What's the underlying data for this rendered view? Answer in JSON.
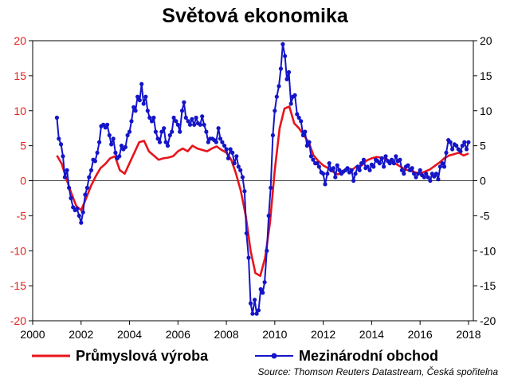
{
  "chart_data": {
    "type": "line",
    "title": "Světová ekonomika",
    "source": "Source: Thomson Reuters Datastream, Česká spořitelna",
    "xlim": [
      2000,
      2018.2
    ],
    "ylim": [
      -20,
      20
    ],
    "x_ticks": [
      2000,
      2002,
      2004,
      2006,
      2008,
      2010,
      2012,
      2014,
      2016,
      2018
    ],
    "y_ticks": [
      -20,
      -15,
      -10,
      -5,
      0,
      5,
      10,
      15,
      20
    ],
    "grid": false,
    "legend_position": "bottom",
    "colors": {
      "left_axis": "#e0201b",
      "right_axis": "#000000"
    },
    "series": [
      {
        "name": "Průmyslová výroba",
        "color": "#e8141b",
        "marker": false,
        "axis": "left",
        "points": [
          [
            2001.0,
            3.6
          ],
          [
            2001.2,
            2.4
          ],
          [
            2001.4,
            0.2
          ],
          [
            2001.6,
            -1.8
          ],
          [
            2001.8,
            -3.6
          ],
          [
            2002.0,
            -4.2
          ],
          [
            2002.2,
            -2.6
          ],
          [
            2002.4,
            -0.8
          ],
          [
            2002.6,
            0.6
          ],
          [
            2002.8,
            1.8
          ],
          [
            2003.0,
            2.4
          ],
          [
            2003.2,
            3.2
          ],
          [
            2003.4,
            3.5
          ],
          [
            2003.6,
            1.5
          ],
          [
            2003.8,
            1.0
          ],
          [
            2004.0,
            2.5
          ],
          [
            2004.2,
            4.0
          ],
          [
            2004.4,
            5.5
          ],
          [
            2004.6,
            5.7
          ],
          [
            2004.8,
            4.2
          ],
          [
            2005.0,
            3.6
          ],
          [
            2005.2,
            3.0
          ],
          [
            2005.4,
            3.2
          ],
          [
            2005.6,
            3.3
          ],
          [
            2005.8,
            3.5
          ],
          [
            2006.0,
            4.2
          ],
          [
            2006.2,
            4.6
          ],
          [
            2006.4,
            4.2
          ],
          [
            2006.6,
            5.0
          ],
          [
            2006.8,
            4.6
          ],
          [
            2007.0,
            4.4
          ],
          [
            2007.2,
            4.2
          ],
          [
            2007.4,
            4.6
          ],
          [
            2007.6,
            4.9
          ],
          [
            2007.8,
            4.4
          ],
          [
            2008.0,
            4.0
          ],
          [
            2008.2,
            3.0
          ],
          [
            2008.4,
            1.0
          ],
          [
            2008.6,
            -1.5
          ],
          [
            2008.8,
            -5.0
          ],
          [
            2009.0,
            -10.0
          ],
          [
            2009.2,
            -13.2
          ],
          [
            2009.4,
            -13.6
          ],
          [
            2009.6,
            -11.0
          ],
          [
            2009.8,
            -6.0
          ],
          [
            2010.0,
            1.5
          ],
          [
            2010.2,
            7.5
          ],
          [
            2010.4,
            10.3
          ],
          [
            2010.6,
            10.6
          ],
          [
            2010.8,
            8.2
          ],
          [
            2011.0,
            7.5
          ],
          [
            2011.2,
            6.5
          ],
          [
            2011.4,
            5.5
          ],
          [
            2011.6,
            3.6
          ],
          [
            2011.8,
            2.8
          ],
          [
            2012.0,
            2.2
          ],
          [
            2012.2,
            1.8
          ],
          [
            2012.4,
            1.3
          ],
          [
            2012.6,
            0.9
          ],
          [
            2012.8,
            1.3
          ],
          [
            2013.0,
            1.8
          ],
          [
            2013.2,
            1.6
          ],
          [
            2013.4,
            2.1
          ],
          [
            2013.6,
            2.2
          ],
          [
            2013.8,
            2.9
          ],
          [
            2014.0,
            3.2
          ],
          [
            2014.2,
            3.4
          ],
          [
            2014.4,
            3.3
          ],
          [
            2014.6,
            3.1
          ],
          [
            2014.8,
            2.7
          ],
          [
            2015.0,
            2.4
          ],
          [
            2015.2,
            2.0
          ],
          [
            2015.4,
            1.6
          ],
          [
            2015.6,
            1.4
          ],
          [
            2015.8,
            1.2
          ],
          [
            2016.0,
            1.0
          ],
          [
            2016.2,
            1.3
          ],
          [
            2016.4,
            1.6
          ],
          [
            2016.6,
            2.1
          ],
          [
            2016.8,
            2.6
          ],
          [
            2017.0,
            3.2
          ],
          [
            2017.2,
            3.6
          ],
          [
            2017.4,
            3.8
          ],
          [
            2017.6,
            4.0
          ],
          [
            2017.8,
            3.6
          ],
          [
            2018.0,
            3.9
          ]
        ]
      },
      {
        "name": "Mezinárodní obchod",
        "color": "#1414c8",
        "marker": true,
        "axis": "right",
        "points": [
          [
            2001.0,
            9.0
          ],
          [
            2001.08,
            6.0
          ],
          [
            2001.17,
            5.2
          ],
          [
            2001.25,
            3.5
          ],
          [
            2001.33,
            0.5
          ],
          [
            2001.42,
            1.5
          ],
          [
            2001.5,
            -1.0
          ],
          [
            2001.58,
            -2.5
          ],
          [
            2001.67,
            -3.8
          ],
          [
            2001.75,
            -4.2
          ],
          [
            2001.83,
            -4.0
          ],
          [
            2001.92,
            -5.0
          ],
          [
            2002.0,
            -6.0
          ],
          [
            2002.08,
            -4.5
          ],
          [
            2002.17,
            -2.0
          ],
          [
            2002.25,
            -1.0
          ],
          [
            2002.33,
            0.5
          ],
          [
            2002.42,
            1.5
          ],
          [
            2002.5,
            3.0
          ],
          [
            2002.58,
            2.8
          ],
          [
            2002.67,
            4.0
          ],
          [
            2002.75,
            5.5
          ],
          [
            2002.83,
            7.8
          ],
          [
            2002.92,
            8.0
          ],
          [
            2003.0,
            7.6
          ],
          [
            2003.08,
            8.0
          ],
          [
            2003.17,
            6.5
          ],
          [
            2003.25,
            5.2
          ],
          [
            2003.33,
            6.0
          ],
          [
            2003.42,
            4.0
          ],
          [
            2003.5,
            3.2
          ],
          [
            2003.58,
            3.5
          ],
          [
            2003.67,
            5.0
          ],
          [
            2003.75,
            4.5
          ],
          [
            2003.83,
            4.8
          ],
          [
            2003.92,
            6.5
          ],
          [
            2004.0,
            7.0
          ],
          [
            2004.08,
            8.5
          ],
          [
            2004.17,
            10.5
          ],
          [
            2004.25,
            10.0
          ],
          [
            2004.33,
            12.0
          ],
          [
            2004.42,
            11.5
          ],
          [
            2004.5,
            13.8
          ],
          [
            2004.58,
            11.0
          ],
          [
            2004.67,
            12.0
          ],
          [
            2004.75,
            10.0
          ],
          [
            2004.83,
            9.0
          ],
          [
            2004.92,
            8.5
          ],
          [
            2005.0,
            9.0
          ],
          [
            2005.08,
            7.0
          ],
          [
            2005.17,
            6.0
          ],
          [
            2005.25,
            5.5
          ],
          [
            2005.33,
            7.0
          ],
          [
            2005.42,
            7.5
          ],
          [
            2005.5,
            5.5
          ],
          [
            2005.58,
            5.0
          ],
          [
            2005.67,
            6.5
          ],
          [
            2005.75,
            7.0
          ],
          [
            2005.83,
            9.0
          ],
          [
            2005.92,
            8.5
          ],
          [
            2006.0,
            8.0
          ],
          [
            2006.08,
            7.0
          ],
          [
            2006.17,
            10.0
          ],
          [
            2006.25,
            11.2
          ],
          [
            2006.33,
            9.0
          ],
          [
            2006.42,
            8.5
          ],
          [
            2006.5,
            8.0
          ],
          [
            2006.58,
            8.8
          ],
          [
            2006.67,
            8.0
          ],
          [
            2006.75,
            9.0
          ],
          [
            2006.83,
            8.2
          ],
          [
            2006.92,
            8.0
          ],
          [
            2007.0,
            9.2
          ],
          [
            2007.08,
            8.0
          ],
          [
            2007.17,
            7.0
          ],
          [
            2007.25,
            5.5
          ],
          [
            2007.33,
            6.0
          ],
          [
            2007.42,
            6.0
          ],
          [
            2007.5,
            5.8
          ],
          [
            2007.58,
            5.5
          ],
          [
            2007.67,
            7.5
          ],
          [
            2007.75,
            6.0
          ],
          [
            2007.83,
            5.5
          ],
          [
            2007.92,
            5.0
          ],
          [
            2008.0,
            4.5
          ],
          [
            2008.08,
            3.2
          ],
          [
            2008.17,
            4.5
          ],
          [
            2008.25,
            4.0
          ],
          [
            2008.33,
            2.5
          ],
          [
            2008.42,
            3.5
          ],
          [
            2008.5,
            2.0
          ],
          [
            2008.58,
            1.5
          ],
          [
            2008.67,
            0.5
          ],
          [
            2008.75,
            -1.5
          ],
          [
            2008.83,
            -7.5
          ],
          [
            2008.92,
            -11.0
          ],
          [
            2009.0,
            -17.5
          ],
          [
            2009.08,
            -19.0
          ],
          [
            2009.17,
            -17.0
          ],
          [
            2009.25,
            -19.0
          ],
          [
            2009.33,
            -18.5
          ],
          [
            2009.42,
            -15.5
          ],
          [
            2009.5,
            -16.0
          ],
          [
            2009.58,
            -14.5
          ],
          [
            2009.67,
            -10.0
          ],
          [
            2009.75,
            -5.0
          ],
          [
            2009.83,
            -1.0
          ],
          [
            2009.92,
            6.5
          ],
          [
            2010.0,
            10.0
          ],
          [
            2010.08,
            12.0
          ],
          [
            2010.17,
            13.5
          ],
          [
            2010.25,
            16.0
          ],
          [
            2010.33,
            19.5
          ],
          [
            2010.42,
            17.8
          ],
          [
            2010.5,
            14.5
          ],
          [
            2010.58,
            15.5
          ],
          [
            2010.67,
            11.0
          ],
          [
            2010.75,
            12.0
          ],
          [
            2010.83,
            12.2
          ],
          [
            2010.92,
            9.5
          ],
          [
            2011.0,
            9.0
          ],
          [
            2011.08,
            8.5
          ],
          [
            2011.17,
            6.5
          ],
          [
            2011.25,
            7.0
          ],
          [
            2011.33,
            5.0
          ],
          [
            2011.42,
            5.5
          ],
          [
            2011.5,
            3.5
          ],
          [
            2011.58,
            3.0
          ],
          [
            2011.67,
            2.5
          ],
          [
            2011.75,
            2.5
          ],
          [
            2011.83,
            2.0
          ],
          [
            2011.92,
            1.2
          ],
          [
            2012.0,
            1.0
          ],
          [
            2012.08,
            -0.5
          ],
          [
            2012.17,
            1.0
          ],
          [
            2012.25,
            2.5
          ],
          [
            2012.33,
            1.5
          ],
          [
            2012.42,
            1.8
          ],
          [
            2012.5,
            0.5
          ],
          [
            2012.58,
            2.2
          ],
          [
            2012.67,
            1.5
          ],
          [
            2012.75,
            1.0
          ],
          [
            2012.83,
            1.3
          ],
          [
            2012.92,
            1.5
          ],
          [
            2013.0,
            1.8
          ],
          [
            2013.08,
            1.2
          ],
          [
            2013.17,
            1.5
          ],
          [
            2013.25,
            0.0
          ],
          [
            2013.33,
            1.0
          ],
          [
            2013.42,
            2.0
          ],
          [
            2013.5,
            1.5
          ],
          [
            2013.58,
            2.5
          ],
          [
            2013.67,
            3.0
          ],
          [
            2013.75,
            1.8
          ],
          [
            2013.83,
            2.0
          ],
          [
            2013.92,
            1.5
          ],
          [
            2014.0,
            2.3
          ],
          [
            2014.08,
            2.0
          ],
          [
            2014.17,
            3.0
          ],
          [
            2014.25,
            2.8
          ],
          [
            2014.33,
            2.5
          ],
          [
            2014.42,
            3.2
          ],
          [
            2014.5,
            2.0
          ],
          [
            2014.58,
            3.5
          ],
          [
            2014.67,
            2.8
          ],
          [
            2014.75,
            2.5
          ],
          [
            2014.83,
            3.0
          ],
          [
            2014.92,
            2.5
          ],
          [
            2015.0,
            3.5
          ],
          [
            2015.08,
            2.8
          ],
          [
            2015.17,
            3.0
          ],
          [
            2015.25,
            1.5
          ],
          [
            2015.33,
            1.0
          ],
          [
            2015.42,
            2.0
          ],
          [
            2015.5,
            2.2
          ],
          [
            2015.58,
            1.5
          ],
          [
            2015.67,
            1.8
          ],
          [
            2015.75,
            1.0
          ],
          [
            2015.83,
            0.5
          ],
          [
            2015.92,
            1.0
          ],
          [
            2016.0,
            1.5
          ],
          [
            2016.08,
            0.8
          ],
          [
            2016.17,
            0.5
          ],
          [
            2016.25,
            1.0
          ],
          [
            2016.33,
            0.5
          ],
          [
            2016.42,
            0.0
          ],
          [
            2016.5,
            1.0
          ],
          [
            2016.58,
            0.6
          ],
          [
            2016.67,
            1.0
          ],
          [
            2016.75,
            0.2
          ],
          [
            2016.83,
            2.0
          ],
          [
            2016.92,
            2.5
          ],
          [
            2017.0,
            2.0
          ],
          [
            2017.08,
            4.0
          ],
          [
            2017.17,
            5.8
          ],
          [
            2017.25,
            5.5
          ],
          [
            2017.33,
            4.5
          ],
          [
            2017.42,
            5.2
          ],
          [
            2017.5,
            5.0
          ],
          [
            2017.58,
            4.5
          ],
          [
            2017.67,
            4.2
          ],
          [
            2017.75,
            5.0
          ],
          [
            2017.83,
            5.5
          ],
          [
            2017.92,
            4.5
          ],
          [
            2018.0,
            5.5
          ]
        ]
      }
    ]
  }
}
